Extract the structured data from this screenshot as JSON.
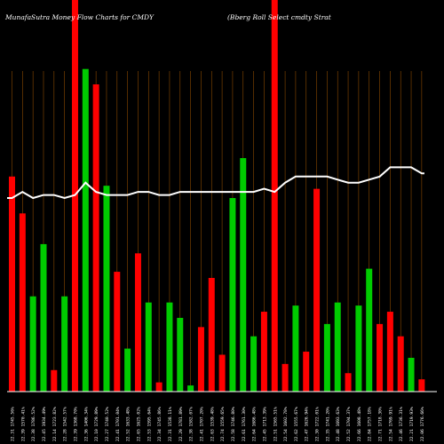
{
  "header": {
    "left": "MunafaSutra  Money Flow  Charts for CMDY",
    "right": "(Bberg Roll Select cmdty Strat"
  },
  "colors": {
    "background": "#000000",
    "up": "#00cc00",
    "down": "#ff0000",
    "line": "#ffffff",
    "grid": "#8b4a00"
  },
  "chart_data": {
    "type": "bar",
    "categories": [
      "22.31 1745.56%",
      "22.39 1570.41%",
      "22.38 1786.52%",
      "22.45 1934.49%",
      "22.14 1723.82%",
      "22.28 1542.57%",
      "22.39 1368.70%",
      "22.36 1406.34%",
      "22.10 1729.89%",
      "22.27 1740.52%",
      "22.41 1701.04%",
      "22.52 1633.48%",
      "22.65 1625.02%",
      "22.53 1595.64%",
      "22.34 1745.86%",
      "22.31 1538.11%",
      "22.29 1781.89%",
      "22.38 1582.07%",
      "22.41 1707.20%",
      "22.63 1539.48%",
      "22.74 1559.65%",
      "22.58 1746.80%",
      "22.61 1761.30%",
      "22.64 1686.48%",
      "22.45 1713.39%",
      "22.51 1565.51%",
      "22.54 1602.78%",
      "22.62 1555.67%",
      "22.47 1626.94%",
      "22.30 1722.01%",
      "22.35 1741.20%",
      "22.48 1693.63%",
      "22.52 1704.37%",
      "22.66 1608.48%",
      "22.84 1757.18%",
      "22.71 1718.30%",
      "22.54 1769.91%",
      "22.46 1736.31%",
      "22.21 1719.93%",
      "22.06 1776.66%"
    ],
    "y_max": 100,
    "bars": [
      {
        "value": 70,
        "dir": "down"
      },
      {
        "value": 58,
        "dir": "down"
      },
      {
        "value": 31,
        "dir": "up"
      },
      {
        "value": 48,
        "dir": "up"
      },
      {
        "value": 7,
        "dir": "down"
      },
      {
        "value": 31,
        "dir": "up"
      },
      {
        "value": 130,
        "dir": "down"
      },
      {
        "value": 105,
        "dir": "up"
      },
      {
        "value": 100,
        "dir": "down"
      },
      {
        "value": 67,
        "dir": "up"
      },
      {
        "value": 39,
        "dir": "down"
      },
      {
        "value": 14,
        "dir": "up"
      },
      {
        "value": 45,
        "dir": "down"
      },
      {
        "value": 29,
        "dir": "up"
      },
      {
        "value": 3,
        "dir": "down"
      },
      {
        "value": 29,
        "dir": "up"
      },
      {
        "value": 24,
        "dir": "up"
      },
      {
        "value": 2,
        "dir": "up"
      },
      {
        "value": 21,
        "dir": "down"
      },
      {
        "value": 37,
        "dir": "down"
      },
      {
        "value": 12,
        "dir": "down"
      },
      {
        "value": 63,
        "dir": "up"
      },
      {
        "value": 76,
        "dir": "up"
      },
      {
        "value": 18,
        "dir": "up"
      },
      {
        "value": 26,
        "dir": "down"
      },
      {
        "value": 130,
        "dir": "down"
      },
      {
        "value": 9,
        "dir": "down"
      },
      {
        "value": 28,
        "dir": "up"
      },
      {
        "value": 13,
        "dir": "down"
      },
      {
        "value": 66,
        "dir": "down"
      },
      {
        "value": 22,
        "dir": "up"
      },
      {
        "value": 29,
        "dir": "up"
      },
      {
        "value": 6,
        "dir": "down"
      },
      {
        "value": 28,
        "dir": "up"
      },
      {
        "value": 40,
        "dir": "up"
      },
      {
        "value": 22,
        "dir": "down"
      },
      {
        "value": 26,
        "dir": "down"
      },
      {
        "value": 18,
        "dir": "down"
      },
      {
        "value": 11,
        "dir": "up"
      },
      {
        "value": 4,
        "dir": "down"
      }
    ],
    "line_values": [
      63,
      65,
      63,
      64,
      64,
      63,
      64,
      68,
      65,
      64,
      64,
      64,
      65,
      65,
      64,
      64,
      65,
      65,
      65,
      65,
      65,
      65,
      65,
      65,
      66,
      65,
      68,
      70,
      70,
      70,
      70,
      69,
      68,
      68,
      69,
      70,
      73,
      73,
      73,
      71
    ],
    "line_min": 0,
    "line_max": 100,
    "grid": true,
    "legend": "none"
  }
}
